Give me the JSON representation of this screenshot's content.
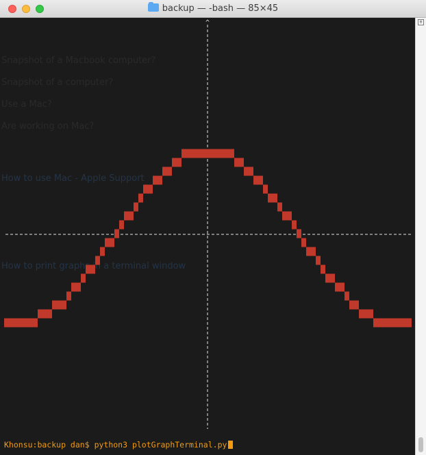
{
  "window": {
    "title": "backup — -bash — 85×45",
    "folder_icon": "folder-icon"
  },
  "terminal": {
    "prompt": "Khonsu:backup dan$ ",
    "command": "python3 plotGraphTerminal.py",
    "colors": {
      "background": "#1b1b1b",
      "plot_cells": "#c0392b",
      "axes": "#e0e0e0",
      "prompt_text": "#f39c12"
    }
  },
  "plot": {
    "axis_arrow": "^",
    "curve": "cosine-like wave rendered as red terminal cells",
    "background_ghost_lines": [
      "Snapshot of a Macbook computer?",
      "Snapshot of a computer?",
      "Use a Mac?",
      "Are working on Mac?",
      "How to use Mac - Apple Support",
      "How to print graphs in a terminal window"
    ]
  }
}
